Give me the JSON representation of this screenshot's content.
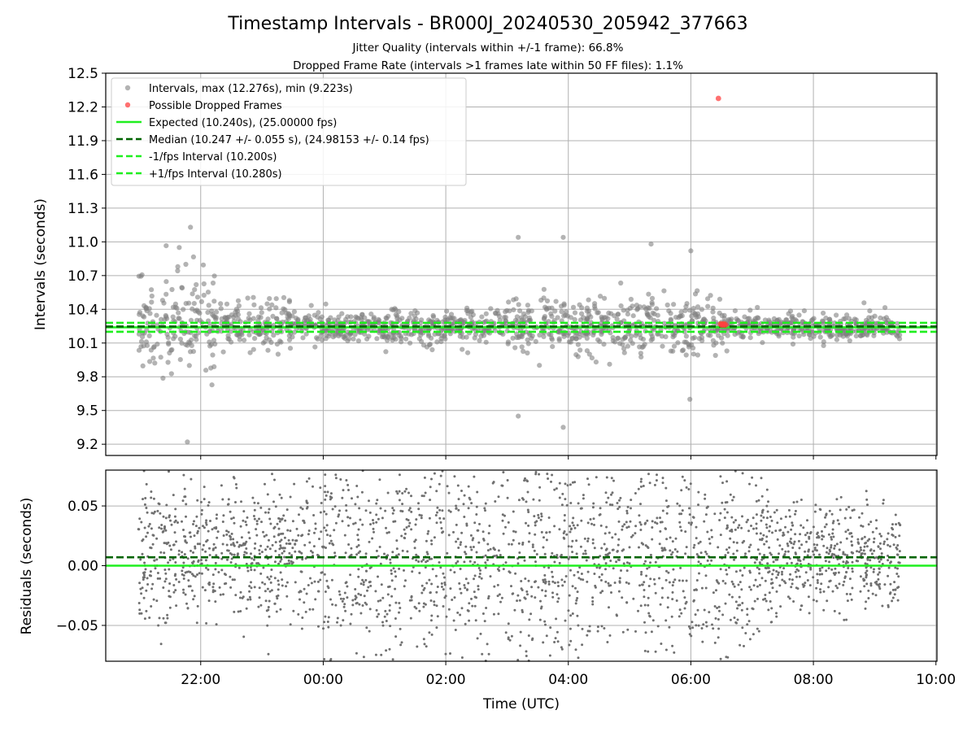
{
  "chart_data": [
    {
      "type": "scatter",
      "title": "Timestamp Intervals - BR000J_20240530_205942_377663",
      "subtitles": [
        "Jitter Quality (intervals within +/-1 frame): 66.8%",
        "Dropped Frame Rate (intervals >1 frames late within 50 FF files): 1.1%"
      ],
      "xlabel": "",
      "ylabel": "Intervals (seconds)",
      "x_type": "time",
      "xlim": [
        "2024-05-30T20:27",
        "2024-05-31T10:01"
      ],
      "ylim": [
        9.1,
        12.5
      ],
      "y_ticks": [
        9.2,
        9.5,
        9.8,
        10.1,
        10.4,
        10.7,
        11.0,
        11.3,
        11.6,
        11.9,
        12.2,
        12.5
      ],
      "y_tick_labels": [
        "9.2",
        "9.5",
        "9.8",
        "10.1",
        "10.4",
        "10.7",
        "11.0",
        "11.3",
        "11.6",
        "11.9",
        "12.2",
        "12.5"
      ],
      "grid": true,
      "legend_position": "top-left",
      "legend": [
        {
          "label": "Intervals, max (12.276s), min (9.223s)",
          "marker": "dot",
          "color": "#808080"
        },
        {
          "label": "Possible Dropped Frames",
          "marker": "dot",
          "color": "#ff4040"
        },
        {
          "label": "Expected (10.240s), (25.00000 fps)",
          "marker": "solid",
          "color": "#1fef1f"
        },
        {
          "label": "Median (10.247 +/- 0.055 s), (24.98153 +/- 0.14 fps)",
          "marker": "dashed",
          "color": "#006400"
        },
        {
          "label": "-1/fps Interval (10.200s)",
          "marker": "dashed",
          "color": "#1fef1f"
        },
        {
          "label": "+1/fps Interval (10.280s)",
          "marker": "dashed",
          "color": "#1fef1f"
        }
      ],
      "lines": [
        {
          "name": "Expected",
          "y": 10.24,
          "style": "solid",
          "color": "#1fef1f"
        },
        {
          "name": "Median",
          "y": 10.247,
          "style": "dashed",
          "color": "#006400"
        },
        {
          "name": "-1/fps Interval",
          "y": 10.2,
          "style": "dashed",
          "color": "#1fef1f"
        },
        {
          "name": "+1/fps Interval",
          "y": 10.28,
          "style": "dashed",
          "color": "#1fef1f"
        }
      ],
      "series": [
        {
          "name": "Intervals",
          "color": "#808080",
          "x_start": "2024-05-30T20:59",
          "x_end": "2024-05-31T09:25",
          "approx_count": 1600,
          "max": 12.276,
          "min": 9.223,
          "median": 10.247,
          "notable_points": [
            {
              "x": "2024-05-30T21:47",
              "y": 9.22
            },
            {
              "x": "2024-05-30T21:50",
              "y": 11.13
            },
            {
              "x": "2024-05-30T21:39",
              "y": 10.95
            },
            {
              "x": "2024-05-31T03:11",
              "y": 11.04
            },
            {
              "x": "2024-05-31T03:55",
              "y": 11.04
            },
            {
              "x": "2024-05-31T05:21",
              "y": 10.98
            },
            {
              "x": "2024-05-31T06:00",
              "y": 10.92
            },
            {
              "x": "2024-05-31T03:55",
              "y": 9.35
            },
            {
              "x": "2024-05-31T03:11",
              "y": 9.45
            },
            {
              "x": "2024-05-31T05:59",
              "y": 9.6
            }
          ]
        },
        {
          "name": "Possible Dropped Frames",
          "color": "#ff4040",
          "points": [
            {
              "x": "2024-05-31T06:27",
              "y": 12.276
            },
            {
              "x": "2024-05-31T06:29",
              "y": 10.27
            },
            {
              "x": "2024-05-31T06:30",
              "y": 10.26
            },
            {
              "x": "2024-05-31T06:31",
              "y": 10.27
            },
            {
              "x": "2024-05-31T06:32",
              "y": 10.26
            },
            {
              "x": "2024-05-31T06:33",
              "y": 10.27
            },
            {
              "x": "2024-05-31T06:34",
              "y": 10.26
            }
          ]
        }
      ]
    },
    {
      "type": "scatter",
      "title": "",
      "xlabel": "Time (UTC)",
      "ylabel": "Residuals (seconds)",
      "x_type": "time",
      "xlim": [
        "2024-05-30T20:27",
        "2024-05-31T10:01"
      ],
      "x_ticks": [
        "22:00",
        "00:00",
        "02:00",
        "04:00",
        "06:00",
        "08:00",
        "10:00"
      ],
      "ylim": [
        -0.08,
        0.08
      ],
      "y_ticks": [
        -0.05,
        0.0,
        0.05
      ],
      "y_tick_labels": [
        "−0.05",
        "0.00",
        "0.05"
      ],
      "grid": true,
      "lines": [
        {
          "name": "Expected",
          "y": 0.0,
          "style": "solid",
          "color": "#1fef1f"
        },
        {
          "name": "Median",
          "y": 0.007,
          "style": "dashed",
          "color": "#006400"
        }
      ],
      "series": [
        {
          "name": "Residuals",
          "color": "#707070",
          "x_start": "2024-05-30T20:59",
          "x_end": "2024-05-31T09:25",
          "approx_count": 2600,
          "range": [
            -0.08,
            0.08
          ]
        }
      ]
    }
  ],
  "colors": {
    "grid": "#b0b0b0",
    "points": "#808080",
    "residual_points": "#707070",
    "dropped": "#ff4040",
    "expected": "#1fef1f",
    "median": "#006400"
  }
}
